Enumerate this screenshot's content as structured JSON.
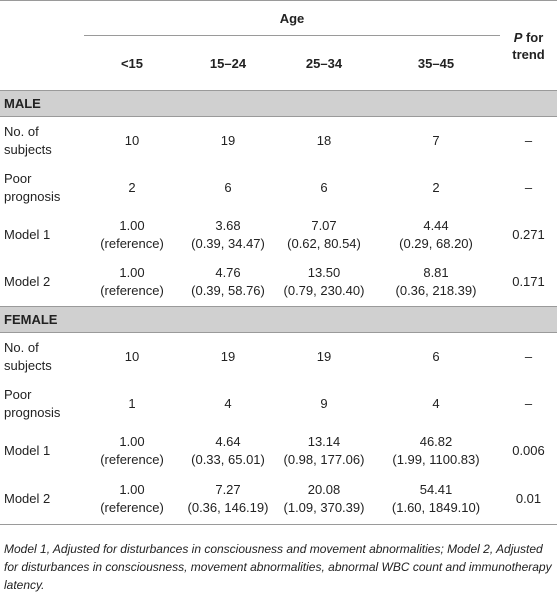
{
  "header": {
    "age_label": "Age",
    "trend_line1": "P",
    "trend_line2": " for",
    "trend_line3": "trend",
    "columns": [
      "<15",
      "15–24",
      "25–34",
      "35–45"
    ]
  },
  "sections": [
    {
      "title": "MALE",
      "rows": [
        {
          "label": [
            "No. of",
            "subjects"
          ],
          "cells": [
            [
              "10"
            ],
            [
              "19"
            ],
            [
              "18"
            ],
            [
              "7"
            ]
          ],
          "trend": "–"
        },
        {
          "label": [
            "Poor",
            "prognosis"
          ],
          "cells": [
            [
              "2"
            ],
            [
              "6"
            ],
            [
              "6"
            ],
            [
              "2"
            ]
          ],
          "trend": "–"
        },
        {
          "label": [
            "Model 1"
          ],
          "cells": [
            [
              "1.00",
              "(reference)"
            ],
            [
              "3.68",
              "(0.39, 34.47)"
            ],
            [
              "7.07",
              "(0.62, 80.54)"
            ],
            [
              "4.44",
              "(0.29, 68.20)"
            ]
          ],
          "trend": "0.271"
        },
        {
          "label": [
            "Model 2"
          ],
          "cells": [
            [
              "1.00",
              "(reference)"
            ],
            [
              "4.76",
              "(0.39, 58.76)"
            ],
            [
              "13.50",
              "(0.79, 230.40)"
            ],
            [
              "8.81",
              "(0.36, 218.39)"
            ]
          ],
          "trend": "0.171"
        }
      ]
    },
    {
      "title": "FEMALE",
      "rows": [
        {
          "label": [
            "No. of",
            "subjects"
          ],
          "cells": [
            [
              "10"
            ],
            [
              "19"
            ],
            [
              "19"
            ],
            [
              "6"
            ]
          ],
          "trend": "–"
        },
        {
          "label": [
            "Poor",
            "prognosis"
          ],
          "cells": [
            [
              "1"
            ],
            [
              "4"
            ],
            [
              "9"
            ],
            [
              "4"
            ]
          ],
          "trend": "–"
        },
        {
          "label": [
            "Model 1"
          ],
          "cells": [
            [
              "1.00",
              "(reference)"
            ],
            [
              "4.64",
              "(0.33, 65.01)"
            ],
            [
              "13.14",
              "(0.98, 177.06)"
            ],
            [
              "46.82",
              "(1.99, 1100.83)"
            ]
          ],
          "trend": "0.006"
        },
        {
          "label": [
            "Model 2"
          ],
          "cells": [
            [
              "1.00",
              "(reference)"
            ],
            [
              "7.27",
              "(0.36, 146.19)"
            ],
            [
              "20.08",
              "(1.09, 370.39)"
            ],
            [
              "54.41",
              "(1.60, 1849.10)"
            ]
          ],
          "trend": "0.01"
        }
      ]
    }
  ],
  "footnote": "Model 1, Adjusted for disturbances in consciousness and movement abnormalities; Model 2, Adjusted for disturbances in consciousness, movement abnormalities, abnormal WBC count and immunotherapy latency."
}
